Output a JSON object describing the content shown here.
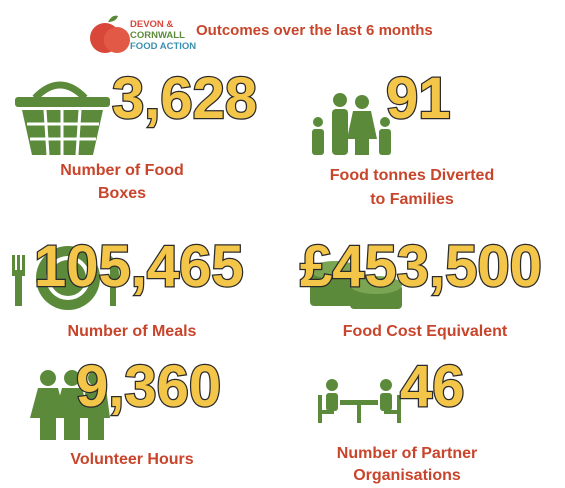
{
  "header": {
    "logo_lines": [
      "DEVON &",
      "CORNWALL",
      "FOOD ACTION"
    ],
    "title": "Outcomes over the last 6 months"
  },
  "stats": [
    {
      "value": "3,628",
      "label_lines": [
        "Number of Food",
        "Boxes"
      ]
    },
    {
      "value": "91",
      "label_lines": [
        "Food tonnes Diverted",
        "to Families"
      ]
    },
    {
      "value": "105,465",
      "label_lines": [
        "Number of Meals"
      ]
    },
    {
      "value": "£453,500",
      "label_lines": [
        "Food Cost Equivalent"
      ]
    },
    {
      "value": "9,360",
      "label_lines": [
        "Volunteer Hours"
      ]
    },
    {
      "value": "46",
      "label_lines": [
        "Number of Partner",
        "Organisations"
      ]
    }
  ]
}
